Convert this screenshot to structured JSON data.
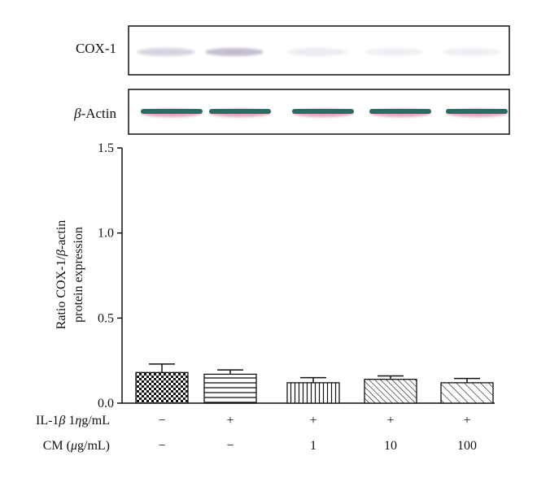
{
  "blots": [
    {
      "label_main": "COX-1",
      "label_greek": "",
      "bands": [
        0.55,
        0.85,
        0.25,
        0.2,
        0.2
      ]
    },
    {
      "label_main": "-Actin",
      "label_greek": "β",
      "bands": [
        1,
        1,
        1,
        1,
        1
      ]
    }
  ],
  "colors": {
    "bar_outline": "#111111",
    "cox_band": "#b9b0c8",
    "actin_band": "#2f6a62",
    "actin_halo": "#c85a88"
  },
  "chart_data": {
    "type": "bar",
    "ylabel_line1_a": "Ratio COX-1/",
    "ylabel_line1_greek": "β",
    "ylabel_line1_b": "-actin",
    "ylabel_line2": "protein expression",
    "ylim": [
      0,
      1.5
    ],
    "yticks": [
      "0.0",
      "0.5",
      "1.0",
      "1.5"
    ],
    "ytick_values": [
      0,
      0.5,
      1.0,
      1.5
    ],
    "values": [
      0.18,
      0.17,
      0.12,
      0.14,
      0.12
    ],
    "errors": [
      0.05,
      0.025,
      0.03,
      0.02,
      0.025
    ],
    "patterns": [
      "checker",
      "horizontal",
      "vertical",
      "diag-dense",
      "diag-sparse"
    ],
    "grid": false,
    "legend": "none"
  },
  "treatment_rows": [
    {
      "label_a": "IL-1",
      "label_greek": "β",
      "label_b": " 1",
      "label_greek2": "η",
      "label_c": "g/mL",
      "values": [
        "−",
        "+",
        "+",
        "+",
        "+"
      ]
    },
    {
      "label_a": "CM (",
      "label_greek": "μ",
      "label_b": "g/mL)",
      "label_greek2": "",
      "label_c": "",
      "values": [
        "−",
        "−",
        "1",
        "10",
        "100"
      ]
    }
  ]
}
